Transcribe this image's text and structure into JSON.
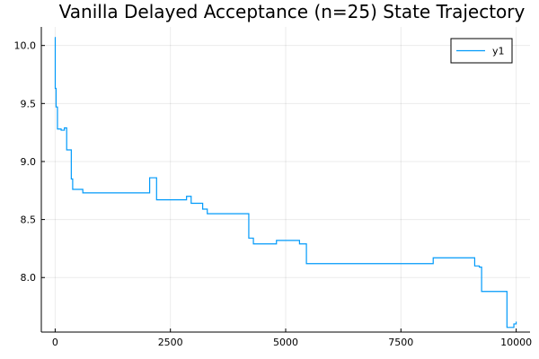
{
  "chart_data": {
    "type": "line",
    "title": "Vanilla Delayed Acceptance (n=25) State Trajectory",
    "xlabel": "",
    "ylabel": "",
    "xlim": [
      -300,
      10300
    ],
    "ylim": [
      7.53,
      10.16
    ],
    "xticks": [
      0,
      2500,
      5000,
      7500,
      10000
    ],
    "xtick_labels": [
      "0",
      "2500",
      "5000",
      "7500",
      "10000"
    ],
    "yticks": [
      8.0,
      8.5,
      9.0,
      9.5,
      10.0
    ],
    "ytick_labels": [
      "8.0",
      "8.5",
      "9.0",
      "9.5",
      "10.0"
    ],
    "grid": true,
    "legend_position": "top-right",
    "step": true,
    "series": [
      {
        "name": "y1",
        "color": "#009AFA",
        "x": [
          0,
          2,
          20,
          50,
          130,
          200,
          250,
          330,
          350,
          380,
          600,
          1000,
          2050,
          2200,
          2850,
          2950,
          3100,
          3200,
          3300,
          3600,
          4200,
          4300,
          4800,
          5300,
          5450,
          6000,
          7500,
          8200,
          9100,
          9200,
          9250,
          9800,
          9950,
          10000
        ],
        "y": [
          10.07,
          9.63,
          9.47,
          9.28,
          9.27,
          9.29,
          9.1,
          9.1,
          8.85,
          8.76,
          8.73,
          8.73,
          8.86,
          8.67,
          8.7,
          8.64,
          8.64,
          8.59,
          8.55,
          8.55,
          8.34,
          8.29,
          8.32,
          8.29,
          8.12,
          8.12,
          8.12,
          8.17,
          8.1,
          8.09,
          7.88,
          7.57,
          7.6,
          7.62
        ]
      }
    ]
  }
}
